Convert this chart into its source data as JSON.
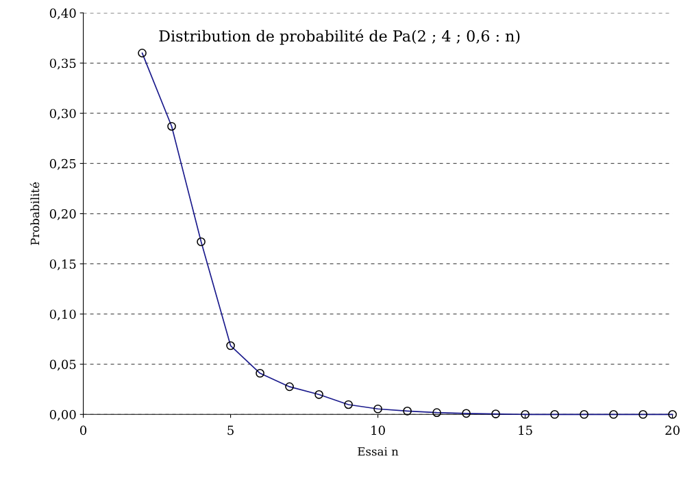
{
  "chart_data": {
    "type": "line",
    "title": "Distribution de probabilité de Pa(2 ; 4 ; 0,6 : n)",
    "xlabel": "Essai n",
    "ylabel": "Probabilité",
    "x": [
      2,
      3,
      4,
      5,
      6,
      7,
      8,
      9,
      10,
      11,
      12,
      13,
      14,
      15,
      16,
      17,
      18,
      19,
      20
    ],
    "series": [
      {
        "color": "#1a1a8c",
        "values": [
          0.36,
          0.287,
          0.172,
          0.0685,
          0.041,
          0.0276,
          0.0198,
          0.0098,
          0.0055,
          0.0034,
          0.0018,
          0.001,
          0.0005,
          0,
          0,
          0,
          0,
          0,
          0
        ]
      }
    ],
    "xlim": [
      0,
      20
    ],
    "xticks": [
      0,
      5,
      10,
      15,
      20
    ],
    "ylim": [
      0,
      0.4
    ],
    "yticks": [
      {
        "value": 0,
        "label": "0,00"
      },
      {
        "value": 0.05,
        "label": "0,05"
      },
      {
        "value": 0.1,
        "label": "0,10"
      },
      {
        "value": 0.15,
        "label": "0,15"
      },
      {
        "value": 0.2,
        "label": "0,20"
      },
      {
        "value": 0.25,
        "label": "0,25"
      },
      {
        "value": 0.3,
        "label": "0,30"
      },
      {
        "value": 0.35,
        "label": "0,35"
      },
      {
        "value": 0.4,
        "label": "0,40"
      }
    ],
    "grid": "y",
    "marker": "circle",
    "line_style": "solid",
    "legend": false
  }
}
